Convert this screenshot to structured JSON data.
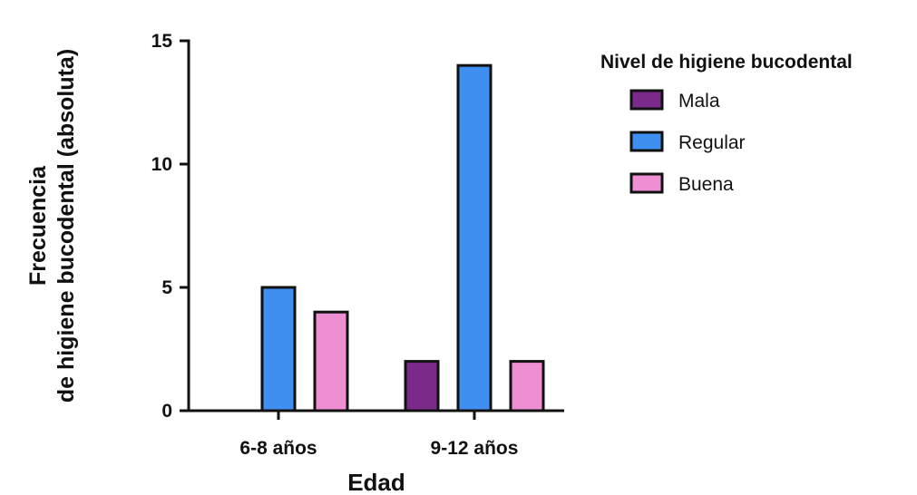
{
  "chart_data": {
    "type": "bar",
    "xlabel": "Edad",
    "ylabel_lines": [
      "Frecuencia",
      "de higiene bucodental (absoluta)"
    ],
    "categories": [
      "6-8 años",
      "9-12 años"
    ],
    "ylim": [
      0,
      15
    ],
    "yticks": [
      0,
      5,
      10,
      15
    ],
    "legend": {
      "title": "Nivel de higiene bucodental",
      "placement": "right"
    },
    "series": [
      {
        "name": "Mala",
        "color": "#7B2A8C",
        "values": [
          0,
          2
        ]
      },
      {
        "name": "Regular",
        "color": "#3F8FF0",
        "values": [
          5,
          14
        ]
      },
      {
        "name": "Buena",
        "color": "#EE8FD4",
        "values": [
          4,
          2
        ]
      }
    ],
    "grid": false
  }
}
